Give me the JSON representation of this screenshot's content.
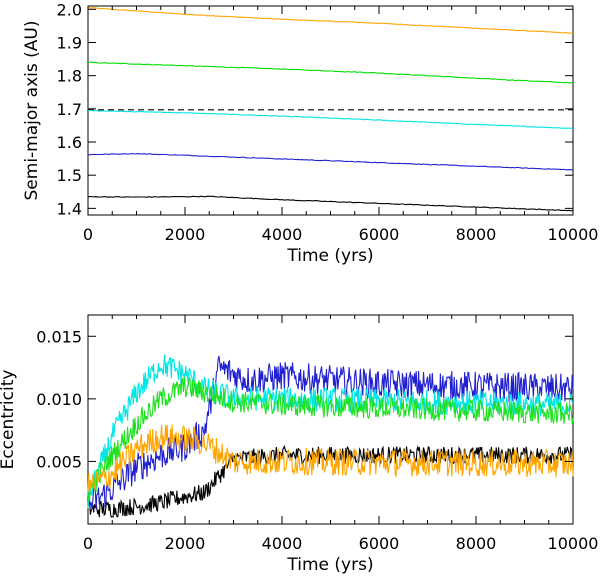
{
  "chart_data": [
    {
      "type": "line",
      "title": "",
      "xlabel": "Time (yrs)",
      "ylabel": "Semi-major axis (AU)",
      "xlim": [
        0,
        10000
      ],
      "ylim": [
        1.38,
        2.01
      ],
      "xticks": [
        0,
        2000,
        4000,
        6000,
        8000,
        10000
      ],
      "xtick_labels": [
        "0",
        "2000",
        "4000",
        "6000",
        "8000",
        "10000"
      ],
      "yticks": [
        1.4,
        1.5,
        1.6,
        1.7,
        1.8,
        1.9,
        2.0
      ],
      "ytick_labels": [
        "1.4",
        "1.5",
        "1.6",
        "1.7",
        "1.8",
        "1.9",
        "2.0"
      ],
      "reference_line": {
        "y": 1.697,
        "style": "dashed",
        "color": "#000000"
      },
      "series": [
        {
          "name": "orange",
          "color": "#ffa500",
          "x": [
            0,
            2000,
            4000,
            6000,
            8000,
            10000
          ],
          "y": [
            2.005,
            1.985,
            1.97,
            1.958,
            1.943,
            1.928
          ]
        },
        {
          "name": "green",
          "color": "#00e000",
          "x": [
            0,
            2000,
            4000,
            6000,
            8000,
            10000
          ],
          "y": [
            1.84,
            1.83,
            1.82,
            1.808,
            1.792,
            1.778
          ]
        },
        {
          "name": "cyan",
          "color": "#00e5e5",
          "x": [
            0,
            2000,
            4000,
            6000,
            8000,
            10000
          ],
          "y": [
            1.695,
            1.688,
            1.678,
            1.666,
            1.653,
            1.641
          ]
        },
        {
          "name": "blue",
          "color": "#2020d0",
          "x": [
            0,
            1000,
            2000,
            4000,
            6000,
            8000,
            10000
          ],
          "y": [
            1.562,
            1.565,
            1.56,
            1.549,
            1.538,
            1.527,
            1.516
          ]
        },
        {
          "name": "black",
          "color": "#000000",
          "x": [
            0,
            1000,
            2500,
            4000,
            6000,
            8000,
            10000
          ],
          "y": [
            1.435,
            1.434,
            1.436,
            1.426,
            1.415,
            1.404,
            1.393
          ]
        }
      ]
    },
    {
      "type": "line",
      "title": "",
      "xlabel": "Time (yrs)",
      "ylabel": "Eccentricity",
      "xlim": [
        0,
        10000
      ],
      "ylim": [
        0.0,
        0.0167
      ],
      "xticks": [
        0,
        2000,
        4000,
        6000,
        8000,
        10000
      ],
      "xtick_labels": [
        "0",
        "2000",
        "4000",
        "6000",
        "8000",
        "10000"
      ],
      "yticks": [
        0.005,
        0.01,
        0.015
      ],
      "ytick_labels": [
        "0.005",
        "0.010",
        "0.015"
      ],
      "series": [
        {
          "name": "black",
          "color": "#000000",
          "base_x": [
            0,
            500,
            1000,
            1500,
            2000,
            2400,
            3000,
            4000,
            10000
          ],
          "base_y": [
            0.0012,
            0.0012,
            0.0014,
            0.0017,
            0.0022,
            0.0025,
            0.0052,
            0.0055,
            0.0055
          ],
          "noise": 0.0007
        },
        {
          "name": "blue",
          "color": "#2020d0",
          "base_x": [
            0,
            500,
            1000,
            1500,
            2000,
            2400,
            2700,
            3300,
            4000,
            6000,
            10000
          ],
          "base_y": [
            0.0015,
            0.0028,
            0.0045,
            0.0055,
            0.0062,
            0.0075,
            0.0125,
            0.0115,
            0.0118,
            0.0112,
            0.0108
          ],
          "noise": 0.0012
        },
        {
          "name": "cyan",
          "color": "#00e5e5",
          "base_x": [
            0,
            500,
            1000,
            1500,
            2000,
            2400,
            3000,
            4000,
            10000
          ],
          "base_y": [
            0.002,
            0.007,
            0.0105,
            0.0128,
            0.012,
            0.0108,
            0.01,
            0.01,
            0.0095
          ],
          "noise": 0.001
        },
        {
          "name": "green",
          "color": "#20e020",
          "base_x": [
            0,
            500,
            1000,
            1500,
            2000,
            2400,
            3000,
            4000,
            10000
          ],
          "base_y": [
            0.0025,
            0.0055,
            0.008,
            0.01,
            0.011,
            0.0105,
            0.0098,
            0.0095,
            0.0088
          ],
          "noise": 0.0009
        },
        {
          "name": "orange",
          "color": "#ffa500",
          "base_x": [
            0,
            500,
            1000,
            1500,
            2000,
            2400,
            3000,
            4000,
            10000
          ],
          "base_y": [
            0.003,
            0.004,
            0.006,
            0.007,
            0.0068,
            0.0065,
            0.005,
            0.005,
            0.0048
          ],
          "noise": 0.0011
        }
      ]
    }
  ]
}
